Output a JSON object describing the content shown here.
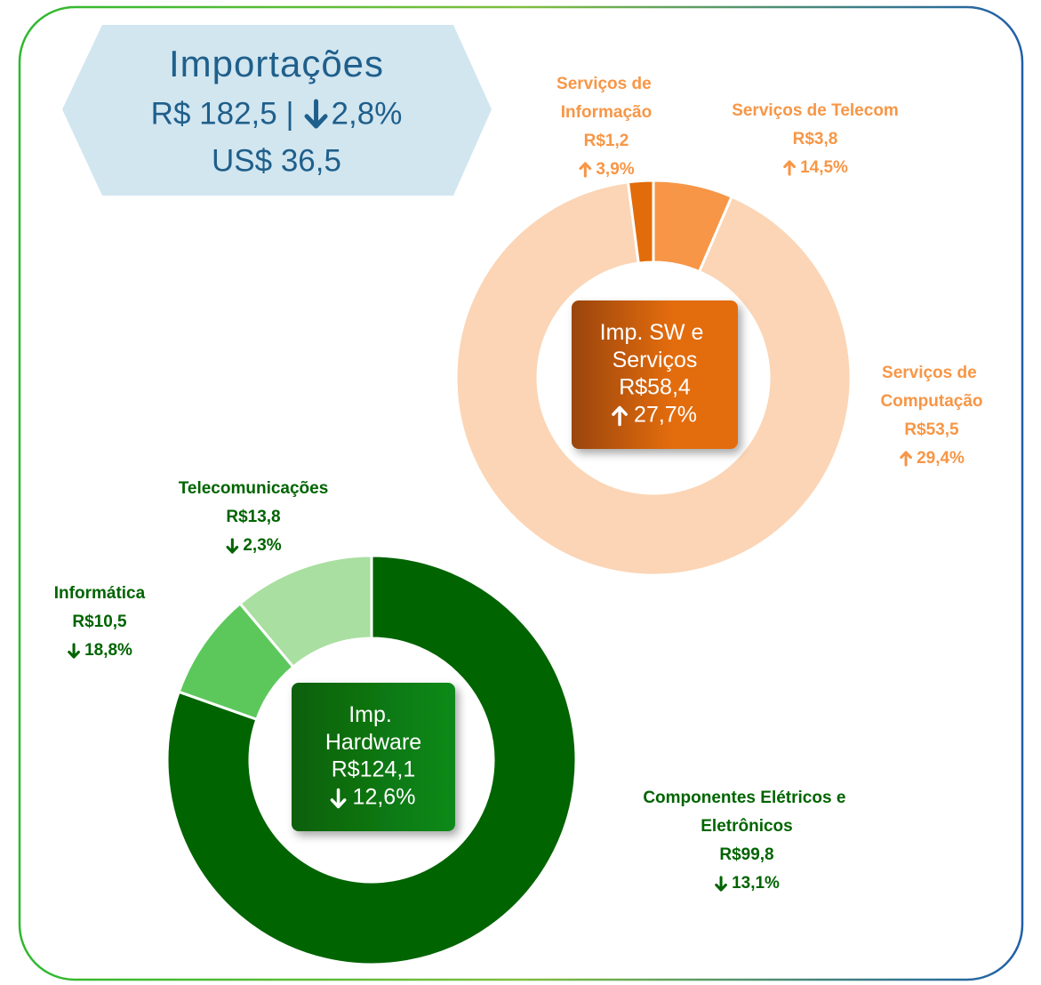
{
  "header": {
    "title": "Importações",
    "brl_label": "R$ 182,5 |",
    "brl_change": -2.8,
    "brl_change_label": "2,8%",
    "usd_label": "US$ 36,5"
  },
  "chart_data": [
    {
      "type": "donut",
      "center_label": "Imp. SW e Serviços",
      "total": 58.4,
      "total_label": "R$58,4",
      "change": 27.7,
      "change_label": "27,7%",
      "categories": [
        "Serviços de Telecom",
        "Serviços de Computação",
        "Serviços de Informação"
      ],
      "values": [
        3.8,
        53.5,
        1.2
      ],
      "value_labels": [
        "R$3,8",
        "R$53,5",
        "R$1,2"
      ],
      "changes": [
        14.5,
        29.4,
        3.9
      ],
      "change_labels": [
        "14,5%",
        "29,4%",
        "3,9%"
      ],
      "colors": [
        "#f79646",
        "#fbd5b5",
        "#e36c0a"
      ],
      "label_color": "#f79646"
    },
    {
      "type": "donut",
      "center_label": "Imp. Hardware",
      "total": 124.1,
      "total_label": "R$124,1",
      "change": -12.6,
      "change_label": "12,6%",
      "categories": [
        "Componentes Elétricos e Eletrônicos",
        "Informática",
        "Telecomunicações"
      ],
      "values": [
        99.8,
        10.5,
        13.8
      ],
      "value_labels": [
        "R$99,8",
        "R$10,5",
        "R$13,8"
      ],
      "changes": [
        -13.1,
        -18.8,
        -2.3
      ],
      "change_labels": [
        "13,1%",
        "18,8%",
        "2,3%"
      ],
      "colors": [
        "#006400",
        "#5cc85c",
        "#a9dfa0"
      ],
      "label_color": "#006400"
    }
  ]
}
